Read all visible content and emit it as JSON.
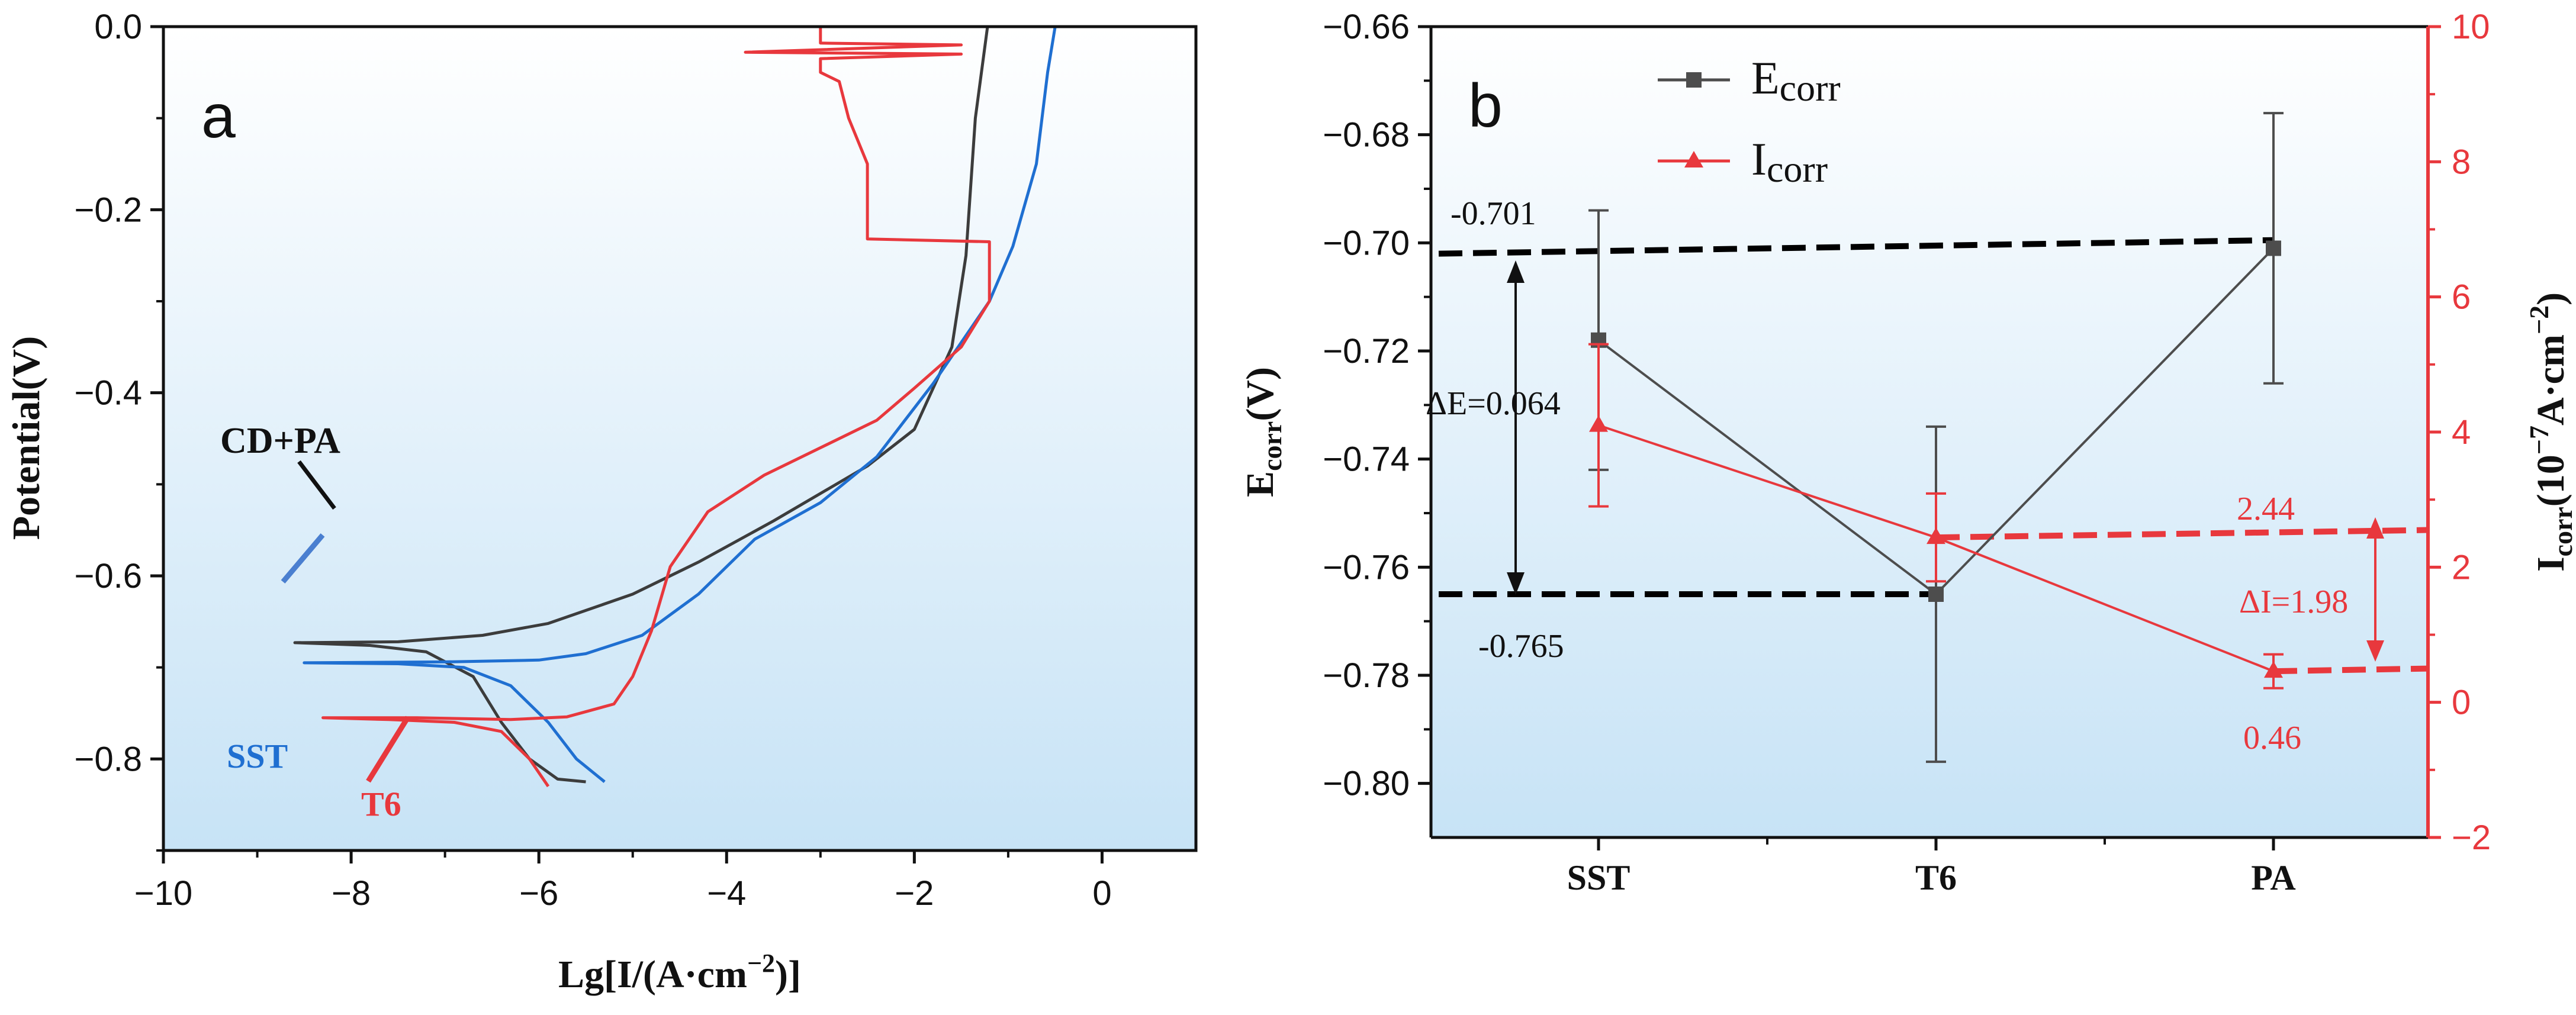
{
  "chart_data": [
    {
      "type": "line",
      "panel": "a",
      "xlabel": "Lg[I/(A·cm−2)]",
      "xlabel_parts": {
        "main": "Lg[I/(A·cm",
        "sup": "−2",
        "tail": ")]"
      },
      "ylabel": "Potential(V)",
      "xlim": [
        -10,
        1
      ],
      "ylim": [
        -0.9,
        0.0
      ],
      "xticks": [
        -10,
        -8,
        -6,
        -4,
        -2,
        0
      ],
      "xtick_labels": [
        "−10",
        "−8",
        "−6",
        "−4",
        "−2",
        "0"
      ],
      "yticks": [
        0.0,
        -0.2,
        -0.4,
        -0.6,
        -0.8
      ],
      "ytick_labels": [
        "0.0",
        "−0.2",
        "−0.4",
        "−0.6",
        "−0.8"
      ],
      "series": [
        {
          "name": "CD+PA",
          "color": "#3c3c3c",
          "points": [
            [
              -5.5,
              -0.825
            ],
            [
              -5.8,
              -0.822
            ],
            [
              -6.1,
              -0.8
            ],
            [
              -6.4,
              -0.76
            ],
            [
              -6.7,
              -0.71
            ],
            [
              -7.2,
              -0.683
            ],
            [
              -7.8,
              -0.676
            ],
            [
              -8.6,
              -0.673
            ],
            [
              -7.5,
              -0.672
            ],
            [
              -6.6,
              -0.665
            ],
            [
              -5.9,
              -0.652
            ],
            [
              -5.0,
              -0.62
            ],
            [
              -4.3,
              -0.585
            ],
            [
              -3.5,
              -0.54
            ],
            [
              -2.5,
              -0.48
            ],
            [
              -2.0,
              -0.44
            ],
            [
              -1.6,
              -0.35
            ],
            [
              -1.45,
              -0.25
            ],
            [
              -1.35,
              -0.1
            ],
            [
              -1.22,
              0.0
            ]
          ]
        },
        {
          "name": "SST",
          "color": "#1f6fd1",
          "points": [
            [
              -5.3,
              -0.825
            ],
            [
              -5.6,
              -0.8
            ],
            [
              -5.9,
              -0.76
            ],
            [
              -6.3,
              -0.72
            ],
            [
              -6.8,
              -0.7
            ],
            [
              -7.5,
              -0.696
            ],
            [
              -8.5,
              -0.695
            ],
            [
              -7.0,
              -0.694
            ],
            [
              -6.0,
              -0.692
            ],
            [
              -5.5,
              -0.685
            ],
            [
              -4.9,
              -0.665
            ],
            [
              -4.3,
              -0.62
            ],
            [
              -3.7,
              -0.56
            ],
            [
              -3.0,
              -0.52
            ],
            [
              -2.4,
              -0.47
            ],
            [
              -1.8,
              -0.39
            ],
            [
              -1.4,
              -0.33
            ],
            [
              -1.2,
              -0.3
            ],
            [
              -0.95,
              -0.24
            ],
            [
              -0.7,
              -0.15
            ],
            [
              -0.58,
              -0.05
            ],
            [
              -0.5,
              0.0
            ]
          ]
        },
        {
          "name": "T6",
          "color": "#e8383d",
          "points": [
            [
              -5.9,
              -0.83
            ],
            [
              -6.1,
              -0.8
            ],
            [
              -6.4,
              -0.77
            ],
            [
              -6.9,
              -0.76
            ],
            [
              -7.6,
              -0.757
            ],
            [
              -8.3,
              -0.755
            ],
            [
              -7.3,
              -0.755
            ],
            [
              -6.3,
              -0.757
            ],
            [
              -5.7,
              -0.754
            ],
            [
              -5.2,
              -0.74
            ],
            [
              -5.0,
              -0.71
            ],
            [
              -4.8,
              -0.66
            ],
            [
              -4.6,
              -0.59
            ],
            [
              -4.2,
              -0.53
            ],
            [
              -3.6,
              -0.49
            ],
            [
              -3.0,
              -0.46
            ],
            [
              -2.4,
              -0.43
            ],
            [
              -2.0,
              -0.395
            ],
            [
              -1.5,
              -0.35
            ],
            [
              -1.2,
              -0.3
            ],
            [
              -1.2,
              -0.235
            ],
            [
              -2.5,
              -0.232
            ],
            [
              -2.5,
              -0.15
            ],
            [
              -2.7,
              -0.1
            ],
            [
              -2.8,
              -0.06
            ],
            [
              -3.0,
              -0.05
            ],
            [
              -3.0,
              -0.035
            ],
            [
              -1.5,
              -0.03
            ],
            [
              -3.8,
              -0.028
            ],
            [
              -1.5,
              -0.02
            ],
            [
              -3.0,
              -0.018
            ],
            [
              -3.0,
              0.0
            ]
          ]
        }
      ],
      "annotations": [
        {
          "text": "CD+PA",
          "color": "#111111"
        },
        {
          "text": "SST",
          "color": "#1f6fd1"
        },
        {
          "text": "T6",
          "color": "#e8383d"
        }
      ]
    },
    {
      "type": "line",
      "panel": "b",
      "categories": [
        "SST",
        "T6",
        "PA"
      ],
      "ylabel_left": "Ecorr(V)",
      "ylabel_left_parts": {
        "main": "E",
        "sub": "corr",
        "tail": "(V)"
      },
      "ylabel_right": "Icorr(10−7A·cm−2)",
      "ylabel_right_parts": {
        "main": "I",
        "sub": "corr",
        "p1": "(10",
        "sup1": "−7",
        "p2": "A·cm",
        "sup2": "−2",
        "p3": ")"
      },
      "ylim_left": [
        -0.81,
        -0.66
      ],
      "yticks_left": [
        -0.66,
        -0.68,
        -0.7,
        -0.72,
        -0.74,
        -0.76,
        -0.78,
        -0.8
      ],
      "ytick_labels_left": [
        "−0.66",
        "−0.68",
        "−0.70",
        "−0.72",
        "−0.74",
        "−0.76",
        "−0.78",
        "−0.80"
      ],
      "ylim_right": [
        -2,
        10
      ],
      "yticks_right": [
        -2,
        0,
        2,
        4,
        6,
        8,
        10
      ],
      "ytick_labels_right": [
        "−2",
        "0",
        "2",
        "4",
        "6",
        "8",
        "10"
      ],
      "series": [
        {
          "name": "Ecorr",
          "legend_main": "E",
          "legend_sub": "corr",
          "color": "#4d4d4d",
          "marker": "square",
          "axis": "left",
          "values": [
            -0.718,
            -0.765,
            -0.701
          ],
          "errors": [
            0.024,
            0.031,
            0.025
          ]
        },
        {
          "name": "Icorr",
          "legend_main": "I",
          "legend_sub": "corr",
          "color": "#e8383d",
          "marker": "triangle",
          "axis": "right",
          "values": [
            4.1,
            2.44,
            0.46
          ],
          "errors": [
            1.2,
            0.65,
            0.25
          ]
        }
      ],
      "reference_lines": [
        {
          "label": "-0.701",
          "color": "#000000",
          "axis": "left",
          "from": [
            "SST-left",
            -0.702
          ],
          "to": [
            "PA",
            -0.6995
          ]
        },
        {
          "label": "-0.765",
          "color": "#000000",
          "axis": "left",
          "from": [
            "SST-left",
            -0.765
          ],
          "to": [
            "T6",
            -0.765
          ]
        },
        {
          "label": "2.44",
          "color": "#e8383d",
          "axis": "right",
          "from": [
            "T6",
            2.44
          ],
          "to": [
            "right-edge",
            2.55
          ]
        },
        {
          "label": "0.46",
          "color": "#e8383d",
          "axis": "right",
          "from": [
            "PA",
            0.46
          ],
          "to": [
            "right-edge",
            0.5
          ]
        }
      ],
      "annotations": [
        {
          "text": "ΔE=0.064",
          "color": "#111111"
        },
        {
          "text": "ΔI=1.98",
          "color": "#e8383d"
        }
      ]
    }
  ]
}
